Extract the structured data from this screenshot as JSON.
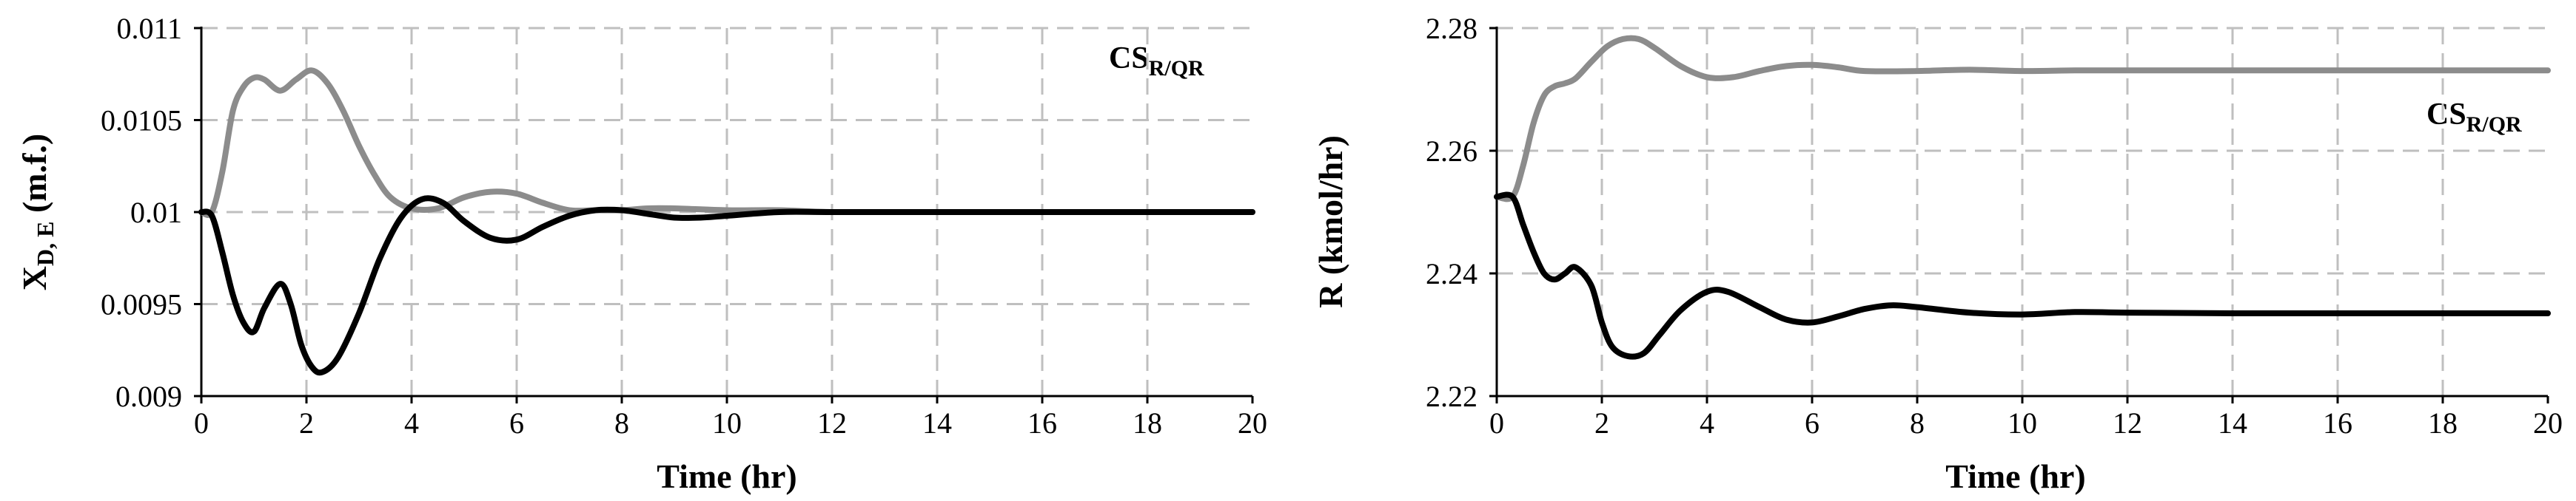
{
  "chart_data": [
    {
      "type": "line",
      "xlabel": "Time (hr)",
      "ylabel": "X",
      "ylabel_sub": "D, E",
      "ylabel_tail": " (m.f.)",
      "annotation": "CS",
      "annotation_sub": "R/QR",
      "xlim": [
        0,
        20
      ],
      "ylim": [
        0.009,
        0.011
      ],
      "xticks": [
        "0",
        "2",
        "4",
        "6",
        "8",
        "10",
        "12",
        "14",
        "16",
        "18",
        "20"
      ],
      "yticks": [
        "0.009",
        "0.0095",
        "0.01",
        "0.0105",
        "0.011"
      ],
      "grid": true,
      "series": [
        {
          "color": "#8c8c8c",
          "x": [
            0,
            0.2,
            0.4,
            0.6,
            0.8,
            1.0,
            1.2,
            1.5,
            1.8,
            2.1,
            2.4,
            2.7,
            3.0,
            3.3,
            3.6,
            4.0,
            4.5,
            5.0,
            5.5,
            6.0,
            6.5,
            7.0,
            7.5,
            8.0,
            8.5,
            9.0,
            10.0,
            11.0,
            12.0,
            14.0,
            17.0,
            20.0
          ],
          "y": [
            0.01,
            0.01,
            0.01022,
            0.01055,
            0.01068,
            0.01073,
            0.01072,
            0.01066,
            0.01072,
            0.01077,
            0.0107,
            0.01055,
            0.01036,
            0.0102,
            0.01008,
            0.01002,
            0.01002,
            0.01008,
            0.01011,
            0.0101,
            0.01005,
            0.01001,
            0.01001,
            0.01001,
            0.01002,
            0.01002,
            0.01001,
            0.01001,
            0.01,
            0.01,
            0.01,
            0.01
          ]
        },
        {
          "color": "#000000",
          "x": [
            0,
            0.2,
            0.4,
            0.6,
            0.8,
            1.0,
            1.2,
            1.5,
            1.7,
            1.9,
            2.1,
            2.3,
            2.6,
            3.0,
            3.4,
            3.8,
            4.2,
            4.6,
            5.0,
            5.5,
            6.0,
            6.5,
            7.0,
            7.5,
            8.0,
            8.5,
            9.0,
            9.5,
            10.0,
            11.0,
            12.0,
            14.0,
            17.0,
            20.0
          ],
          "y": [
            0.01,
            0.00998,
            0.00978,
            0.00955,
            0.0094,
            0.00935,
            0.00948,
            0.00961,
            0.0095,
            0.00928,
            0.00916,
            0.00913,
            0.00921,
            0.00945,
            0.00975,
            0.00997,
            0.01007,
            0.01005,
            0.00995,
            0.00986,
            0.00985,
            0.00992,
            0.00998,
            0.01001,
            0.01001,
            0.00999,
            0.00997,
            0.00997,
            0.00998,
            0.01,
            0.01,
            0.01,
            0.01,
            0.01
          ]
        }
      ]
    },
    {
      "type": "line",
      "xlabel": "Time (hr)",
      "ylabel": "R (kmol/hr)",
      "annotation": "CS",
      "annotation_sub": "R/QR",
      "xlim": [
        0,
        20
      ],
      "ylim": [
        2.22,
        2.28
      ],
      "xticks": [
        "0",
        "2",
        "4",
        "6",
        "8",
        "10",
        "12",
        "14",
        "16",
        "18",
        "20"
      ],
      "yticks": [
        "2.22",
        "2.24",
        "2.26",
        "2.28"
      ],
      "grid": true,
      "series": [
        {
          "color": "#8c8c8c",
          "x": [
            0,
            0.3,
            0.5,
            0.7,
            0.9,
            1.1,
            1.3,
            1.5,
            1.8,
            2.1,
            2.4,
            2.7,
            3.0,
            3.5,
            4.0,
            4.5,
            5.0,
            5.5,
            6.0,
            6.5,
            7.0,
            8.0,
            9.0,
            10.0,
            11.0,
            12.0,
            14.0,
            17.0,
            20.0
          ],
          "y": [
            2.2525,
            2.2525,
            2.2575,
            2.2645,
            2.269,
            2.2705,
            2.271,
            2.2718,
            2.2745,
            2.277,
            2.2782,
            2.2782,
            2.2768,
            2.2738,
            2.272,
            2.272,
            2.273,
            2.2738,
            2.274,
            2.2736,
            2.273,
            2.273,
            2.2732,
            2.273,
            2.2731,
            2.2731,
            2.2731,
            2.2731,
            2.2731
          ]
        },
        {
          "color": "#000000",
          "x": [
            0,
            0.3,
            0.5,
            0.7,
            0.9,
            1.1,
            1.3,
            1.5,
            1.8,
            2.0,
            2.2,
            2.5,
            2.8,
            3.1,
            3.5,
            4.0,
            4.4,
            5.0,
            5.5,
            6.0,
            6.5,
            7.0,
            7.5,
            8.0,
            9.0,
            10.0,
            11.0,
            12.0,
            14.0,
            17.0,
            20.0
          ],
          "y": [
            2.2525,
            2.2525,
            2.248,
            2.2435,
            2.24,
            2.239,
            2.24,
            2.241,
            2.238,
            2.232,
            2.228,
            2.2265,
            2.227,
            2.23,
            2.234,
            2.237,
            2.237,
            2.2345,
            2.2325,
            2.232,
            2.233,
            2.2342,
            2.2348,
            2.2345,
            2.2336,
            2.2333,
            2.2337,
            2.2336,
            2.2335,
            2.2335,
            2.2335
          ]
        }
      ]
    }
  ]
}
